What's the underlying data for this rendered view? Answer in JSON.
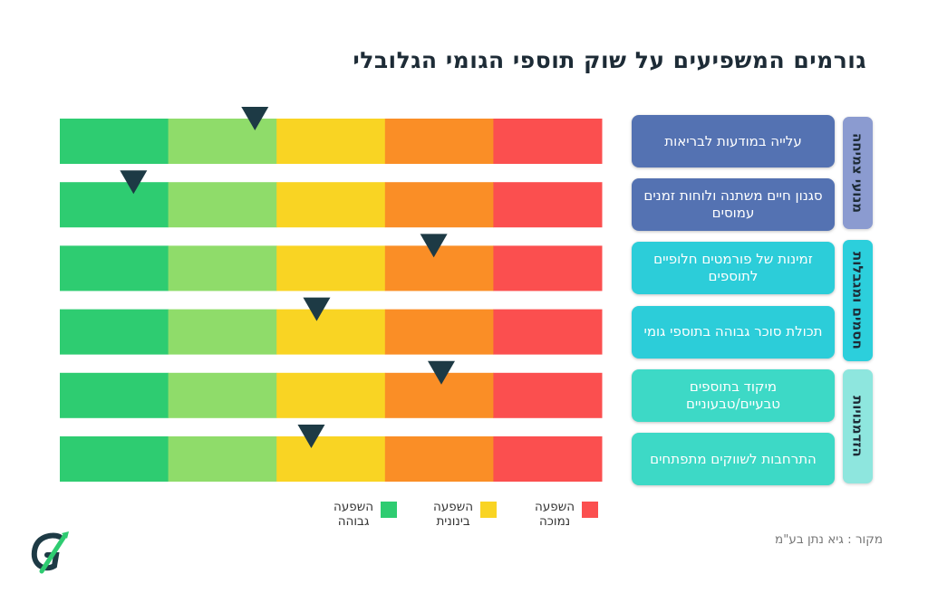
{
  "title": "גורמים המשפיעים על שוק תוספי הגומי הגלובלי",
  "chart_data": {
    "type": "table",
    "title": "גורמים המשפיעים על שוק תוספי הגומי הגלובלי",
    "scale_note": "0 = impact high (left/green), 5 = impact low (right/red); marker position in segment units",
    "segments": [
      "#2ecc71",
      "#8fdc6a",
      "#f9d423",
      "#fa8e26",
      "#fb4f4f"
    ],
    "rows": [
      {
        "label": "עלייה במודעות לבריאות",
        "category": 0,
        "marker": 1.8
      },
      {
        "label": "סגנון חיים משתנה ולוחות זמנים עמוסים",
        "category": 0,
        "marker": 0.68
      },
      {
        "label": "זמינות של פורמטים חלופיים לתוספים",
        "category": 1,
        "marker": 3.45
      },
      {
        "label": "תכולת סוכר גבוהה בתוספי גומי",
        "category": 1,
        "marker": 2.37
      },
      {
        "label": "מיקוד בתוספים טבעיים/טבעוניים",
        "category": 2,
        "marker": 3.52
      },
      {
        "label": "התרחבות לשווקים מתפתחים",
        "category": 2,
        "marker": 2.32
      }
    ],
    "categories": [
      {
        "name": "מנועי צמיחה",
        "color": "#8b9bd0"
      },
      {
        "name": "חסמים ומגבלות",
        "color": "#2ccfdc"
      },
      {
        "name": "הזדמנויות",
        "color": "#8ee6de"
      }
    ],
    "row_colors": [
      "#5472b2",
      "#5472b2",
      "#2ccdd9",
      "#2ccdd9",
      "#3dd9c6",
      "#3dd9c6"
    ],
    "marker_color": "#1d3a45",
    "legend": [
      {
        "label": "השפעה גבוהה",
        "color": "#2ecc71"
      },
      {
        "label": "השפעה בינונית",
        "color": "#f9d423"
      },
      {
        "label": "השפעה נמוכה",
        "color": "#fb4f4f"
      }
    ]
  },
  "source": "מקור : גיא נתן בע\"מ",
  "logo_icon": "gn-logo-icon"
}
